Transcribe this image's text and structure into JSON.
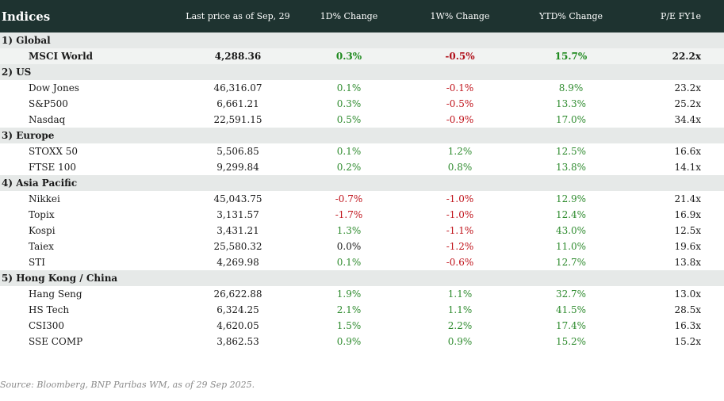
{
  "header": {
    "title": "Indices",
    "col_price": "Last price as of Sep, 29",
    "col_1d": "1D% Change",
    "col_1w": "1W% Change",
    "col_ytd": "YTD% Change",
    "col_pe": "P/E FY1e"
  },
  "sections": [
    {
      "title": "1) Global",
      "rows": [
        {
          "name": "MSCI World",
          "price": "4,288.36",
          "d1": "0.3%",
          "w1": "-0.5%",
          "ytd": "15.7%",
          "pe": "22.2x",
          "highlight": true
        }
      ]
    },
    {
      "title": "2) US",
      "rows": [
        {
          "name": "Dow Jones",
          "price": "46,316.07",
          "d1": "0.1%",
          "w1": "-0.1%",
          "ytd": "8.9%",
          "pe": "23.2x"
        },
        {
          "name": "S&P500",
          "price": "6,661.21",
          "d1": "0.3%",
          "w1": "-0.5%",
          "ytd": "13.3%",
          "pe": "25.2x"
        },
        {
          "name": "Nasdaq",
          "price": "22,591.15",
          "d1": "0.5%",
          "w1": "-0.9%",
          "ytd": "17.0%",
          "pe": "34.4x"
        }
      ]
    },
    {
      "title": "3) Europe",
      "rows": [
        {
          "name": "STOXX 50",
          "price": "5,506.85",
          "d1": "0.1%",
          "w1": "1.2%",
          "ytd": "12.5%",
          "pe": "16.6x"
        },
        {
          "name": "FTSE 100",
          "price": "9,299.84",
          "d1": "0.2%",
          "w1": "0.8%",
          "ytd": "13.8%",
          "pe": "14.1x"
        }
      ]
    },
    {
      "title": "4) Asia Pacific",
      "rows": [
        {
          "name": "Nikkei",
          "price": "45,043.75",
          "d1": "-0.7%",
          "w1": "-1.0%",
          "ytd": "12.9%",
          "pe": "21.4x"
        },
        {
          "name": "Topix",
          "price": "3,131.57",
          "d1": "-1.7%",
          "w1": "-1.0%",
          "ytd": "12.4%",
          "pe": "16.9x"
        },
        {
          "name": "Kospi",
          "price": "3,431.21",
          "d1": "1.3%",
          "w1": "-1.1%",
          "ytd": "43.0%",
          "pe": "12.5x"
        },
        {
          "name": "Taiex",
          "price": "25,580.32",
          "d1": "0.0%",
          "w1": "-1.2%",
          "ytd": "11.0%",
          "pe": "19.6x"
        },
        {
          "name": "STI",
          "price": "4,269.98",
          "d1": "0.1%",
          "w1": "-0.6%",
          "ytd": "12.7%",
          "pe": "13.8x"
        }
      ]
    },
    {
      "title": "5) Hong Kong / China",
      "rows": [
        {
          "name": "Hang Seng",
          "price": "26,622.88",
          "d1": "1.9%",
          "w1": "1.1%",
          "ytd": "32.7%",
          "pe": "13.0x"
        },
        {
          "name": "HS Tech",
          "price": "6,324.25",
          "d1": "2.1%",
          "w1": "1.1%",
          "ytd": "41.5%",
          "pe": "28.5x"
        },
        {
          "name": "CSI300",
          "price": "4,620.05",
          "d1": "1.5%",
          "w1": "2.2%",
          "ytd": "17.4%",
          "pe": "16.3x"
        },
        {
          "name": "SSE COMP",
          "price": "3,862.53",
          "d1": "0.9%",
          "w1": "0.9%",
          "ytd": "15.2%",
          "pe": "15.2x"
        }
      ]
    }
  ],
  "source": "Source: Bloomberg, BNP Paribas WM, as of 29 Sep 2025.",
  "colors": {
    "header_bg": "#1e3330",
    "section_bg": "#e6e9e8",
    "positive": "#2e8b2e",
    "negative": "#c0141c"
  }
}
